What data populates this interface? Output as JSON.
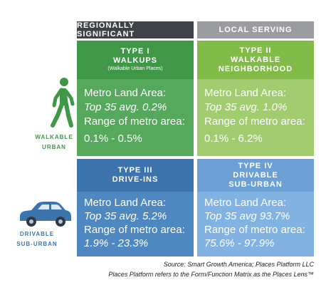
{
  "headers": {
    "regional": "REGIONALLY SIGNIFICANT",
    "local": "LOCAL SERVING"
  },
  "quadrants": [
    {
      "title_line1": "TYPE I",
      "title_line2": "WALKUPS",
      "subtitle": "(Walkable Urban Places)",
      "land_label": "Metro Land Area:",
      "avg": "Top 35 avg. 0.2%",
      "range_label": "Range of metro area:",
      "range": "0.1% - 0.5%"
    },
    {
      "title_line1": "TYPE II",
      "title_line2": "WALKABLE",
      "title_line3": "NEIGHBORHOOD",
      "land_label": "Metro Land Area:",
      "avg": "Top 35 avg. 1.0%",
      "range_label": "Range of metro area:",
      "range": "0.1% - 6.2%"
    },
    {
      "title_line1": "TYPE III",
      "title_line2": "DRIVE-INS",
      "land_label": "Metro Land Area:",
      "avg": "Top 35 avg. 5.2%",
      "range_label": "Range of metro area:",
      "range": "1.9% - 23.3%"
    },
    {
      "title_line1": "TYPE IV",
      "title_line2": "DRIVABLE",
      "title_line3": "SUB-URBAN",
      "land_label": "Metro Land Area:",
      "avg": "Top 35 avg 93.7%",
      "range_label": "Range of metro area:",
      "range": "75.6% - 97.9%"
    }
  ],
  "side_labels": {
    "walkable_line1": "WALKABLE",
    "walkable_line2": "URBAN",
    "drivable_line1": "DRIVABLE",
    "drivable_line2": "SUB-URBAN"
  },
  "icons": {
    "walker": "walking-person-icon",
    "car": "car-icon"
  },
  "colors": {
    "walkable_green": "#3f9747",
    "drivable_blue": "#3e74ad",
    "header_dark": "#3f4246",
    "header_light": "#9a9c9f"
  },
  "source": {
    "line1": "Source: Smart Growth America; Places Platform LLC",
    "line2": "Places Platform refers to the Form/Function Matrix as the Places Lens™"
  }
}
